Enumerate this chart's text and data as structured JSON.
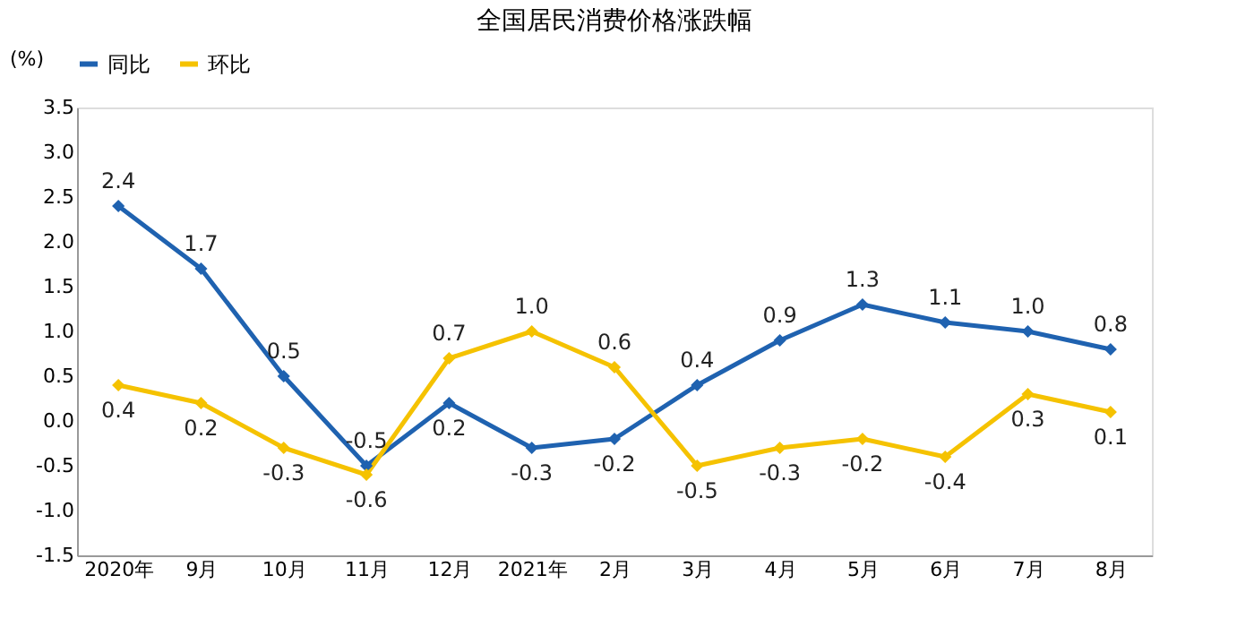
{
  "chart_data": {
    "type": "line",
    "title": "全国居民消费价格涨跌幅",
    "ylabel": "(%)",
    "categories": [
      "2020年",
      "9月",
      "10月",
      "11月",
      "12月",
      "2021年",
      "2月",
      "3月",
      "4月",
      "5月",
      "6月",
      "7月",
      "8月"
    ],
    "series": [
      {
        "name": "同比",
        "color": "#1f62b0",
        "values": [
          2.4,
          1.7,
          0.5,
          -0.5,
          0.2,
          -0.3,
          -0.2,
          0.4,
          0.9,
          1.3,
          1.1,
          1.0,
          0.8
        ],
        "value_labels": [
          "2.4",
          "1.7",
          "0.5",
          "-0.5",
          "0.2",
          "-0.3",
          "-0.2",
          "0.4",
          "0.9",
          "1.3",
          "1.1",
          "1.0",
          "0.8"
        ]
      },
      {
        "name": "环比",
        "color": "#f5c200",
        "values": [
          0.4,
          0.2,
          -0.3,
          -0.6,
          0.7,
          1.0,
          0.6,
          -0.5,
          -0.3,
          -0.2,
          -0.4,
          0.3,
          0.1
        ],
        "value_labels": [
          "0.4",
          "0.2",
          "-0.3",
          "-0.6",
          "0.7",
          "1.0",
          "0.6",
          "-0.5",
          "-0.3",
          "-0.2",
          "-0.4",
          "0.3",
          "0.1"
        ]
      }
    ],
    "ylim": [
      -1.5,
      3.5
    ],
    "yticks": [
      -1.5,
      {
        "value": -1.0,
        "label": "-1.0"
      },
      -0.5,
      {
        "value": 0.0,
        "label": "0.0"
      },
      0.5,
      {
        "value": 1.0,
        "label": "1.0"
      },
      1.5,
      {
        "value": 2.0,
        "label": "2.0"
      },
      2.5,
      {
        "value": 3.0,
        "label": "3.0"
      },
      3.5
    ],
    "legend": "top",
    "grid": false,
    "marker": "diamond",
    "line_style": "solid"
  }
}
